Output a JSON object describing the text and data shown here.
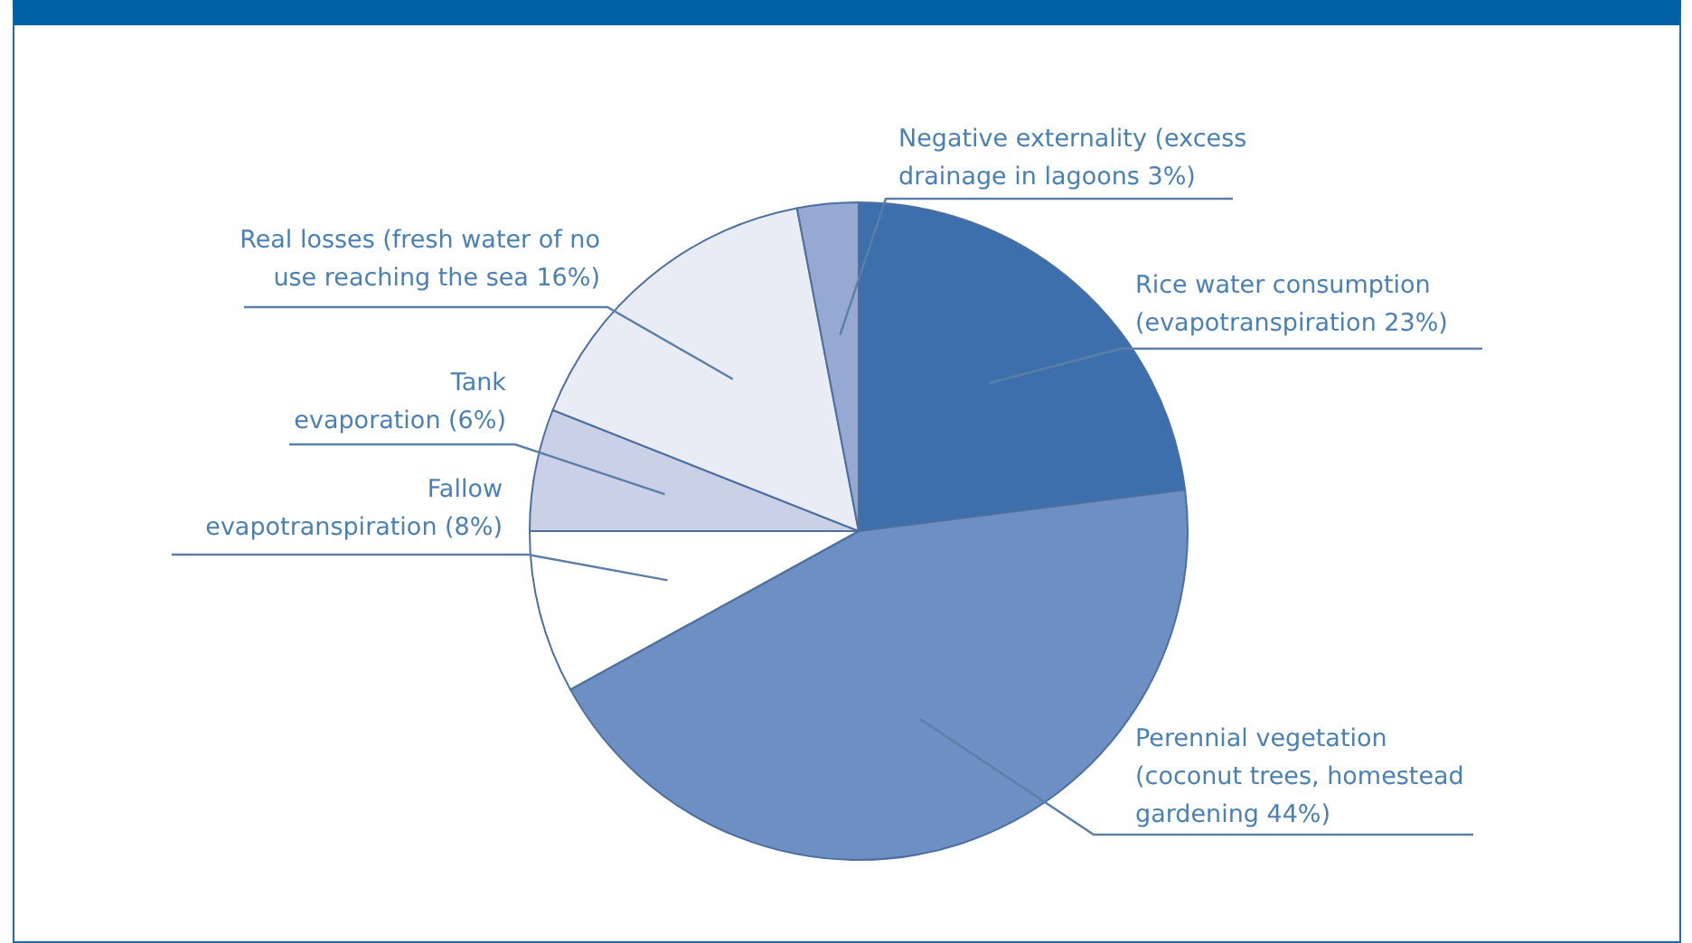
{
  "chart_data": {
    "type": "pie",
    "categories": [
      "Rice water consumption (evapotranspiration 23%)",
      "Perennial vegetation (coconut trees, homestead gardening 44%)",
      "Fallow evapotranspiration (8%)",
      "Tank evaporation (6%)",
      "Real losses (fresh water of no use reaching the sea 16%)",
      "Negative externality (excess drainage in lagoons 3%)"
    ],
    "values": [
      23,
      44,
      8,
      6,
      16,
      3
    ],
    "colors": [
      "#3d6fac",
      "#6d8fc4",
      "#ffffff",
      "#c9d0e7",
      "#e9ebf5",
      "#96a9d3"
    ]
  }
}
